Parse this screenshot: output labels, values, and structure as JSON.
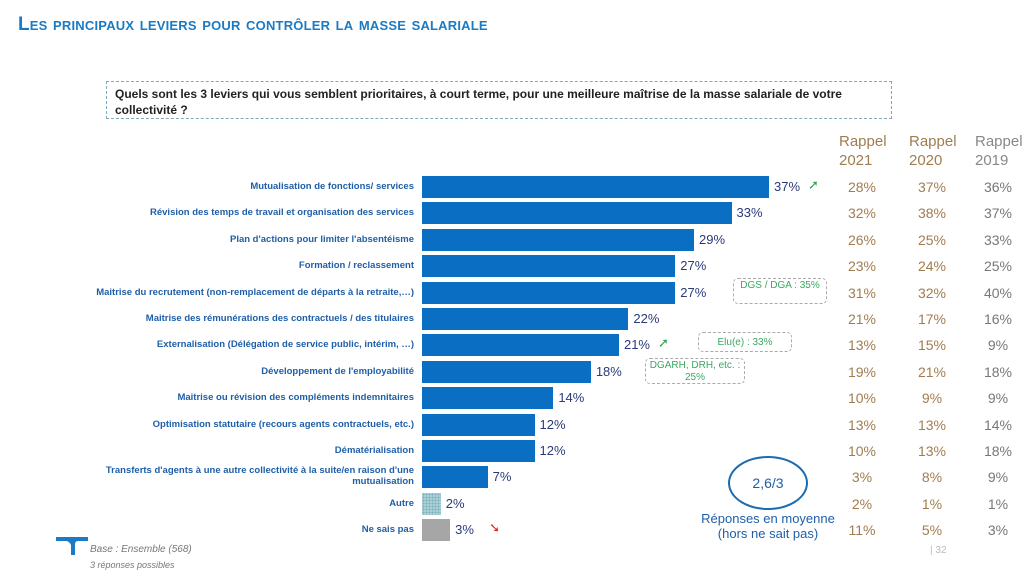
{
  "title": "Les principaux leviers pour contrôler la masse salariale",
  "question": "Quels sont les 3 leviers qui vous semblent prioritaires, à court terme, pour une meilleure maîtrise de la masse salariale de votre collectivité ?",
  "chart_data": {
    "type": "bar",
    "orientation": "horizontal",
    "categories": [
      "Mutualisation de fonctions/ services",
      "Révision des temps de travail et organisation des services",
      "Plan d'actions pour limiter l'absentéisme",
      "Formation / reclassement",
      "Maitrise du recrutement (non-remplacement de départs à la retraite,…)",
      "Maitrise des rémunérations des contractuels / des titulaires",
      "Externalisation (Délégation de service public, intérim, …)",
      "Développement de l'employabilité",
      "Maitrise ou révision des compléments indemnitaires",
      "Optimisation statutaire (recours agents contractuels, etc.)",
      "Dématérialisation",
      "Transferts d'agents à une autre collectivité à la suite/en raison d'une mutualisation",
      "Autre",
      "Ne sais pas"
    ],
    "values": [
      37,
      33,
      29,
      27,
      27,
      22,
      21,
      18,
      14,
      12,
      12,
      7,
      2,
      3
    ],
    "value_labels": [
      "37%",
      "33%",
      "29%",
      "27%",
      "27%",
      "22%",
      "21%",
      "18%",
      "14%",
      "12%",
      "12%",
      "7%",
      "2%",
      "3%"
    ],
    "bar_colors": [
      "#0a6fc2",
      "#0a6fc2",
      "#0a6fc2",
      "#0a6fc2",
      "#0a6fc2",
      "#0a6fc2",
      "#0a6fc2",
      "#0a6fc2",
      "#0a6fc2",
      "#0a6fc2",
      "#0a6fc2",
      "#0a6fc2",
      "#a9cfd8",
      "#a6a6a6"
    ],
    "trend_arrows": {
      "0": "up",
      "6": "up",
      "13": "down"
    },
    "arrow_colors": {
      "up": "#2aa84a",
      "down": "#e02020"
    },
    "rappel": {
      "headers": [
        [
          "Rappel",
          "2021"
        ],
        [
          "Rappel",
          "2020"
        ],
        [
          "Rappel",
          "2019"
        ]
      ],
      "values": [
        [
          "28%",
          "32%",
          "26%",
          "23%",
          "31%",
          "21%",
          "13%",
          "19%",
          "10%",
          "13%",
          "10%",
          "3%",
          "2%",
          "11%"
        ],
        [
          "37%",
          "38%",
          "25%",
          "24%",
          "32%",
          "17%",
          "15%",
          "21%",
          "9%",
          "13%",
          "13%",
          "8%",
          "1%",
          "5%"
        ],
        [
          "36%",
          "37%",
          "33%",
          "25%",
          "40%",
          "16%",
          "9%",
          "18%",
          "9%",
          "14%",
          "18%",
          "9%",
          "1%",
          "3%"
        ]
      ]
    },
    "xlim": [
      0,
      37
    ]
  },
  "callouts": [
    {
      "row": 4,
      "text": "DGS / DGA : 35%"
    },
    {
      "row": 6,
      "text": "Elu(e) : 33%"
    },
    {
      "row": 7,
      "text": "DGARH, DRH, etc. : 25%"
    }
  ],
  "average": {
    "value": "2,6/3",
    "label": "Réponses en moyenne (hors ne sait pas)"
  },
  "footer": {
    "base": "Base : Ensemble (568)",
    "note": "3 réponses possibles",
    "page": "| 32"
  }
}
